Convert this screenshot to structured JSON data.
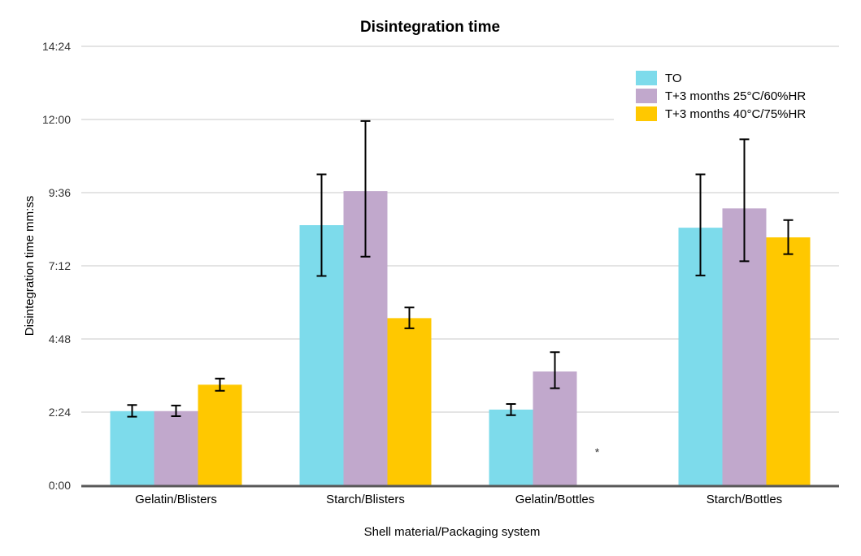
{
  "chart_data": {
    "type": "bar",
    "title": "Disintegration time",
    "xlabel": "Shell material/Packaging system",
    "ylabel": "Disintegration time mm:ss",
    "categories": [
      "Gelatin/Blisters",
      "Starch/Blisters",
      "Gelatin/Bottles",
      "Starch/Bottles"
    ],
    "yticks": [
      "0:00",
      "2:24",
      "4:48",
      "7:12",
      "9:36",
      "12:00",
      "14:24"
    ],
    "ylim_seconds": [
      0,
      864
    ],
    "grid": true,
    "legend_position": "top-right",
    "series": [
      {
        "name": "TO",
        "color": "#7ddbeb",
        "values_seconds": [
          146,
          512,
          149,
          507
        ],
        "error_low_seconds": [
          135,
          412,
          138,
          413
        ],
        "error_high_seconds": [
          158,
          612,
          160,
          612
        ]
      },
      {
        "name": "T+3 months 25°C/60%HR",
        "color": "#c1a8cc",
        "values_seconds": [
          146,
          579,
          224,
          545
        ],
        "error_low_seconds": [
          136,
          450,
          191,
          441
        ],
        "error_high_seconds": [
          157,
          717,
          262,
          681
        ]
      },
      {
        "name": "T+3 months 40°C/75%HR",
        "color": "#ffc800",
        "values_seconds": [
          198,
          329,
          null,
          488
        ],
        "error_low_seconds": [
          186,
          309,
          null,
          455
        ],
        "error_high_seconds": [
          210,
          350,
          null,
          522
        ]
      }
    ],
    "annotations": [
      {
        "text": "*",
        "category": "Gelatin/Bottles",
        "series": "T+3 months 40°C/75%HR"
      }
    ]
  }
}
